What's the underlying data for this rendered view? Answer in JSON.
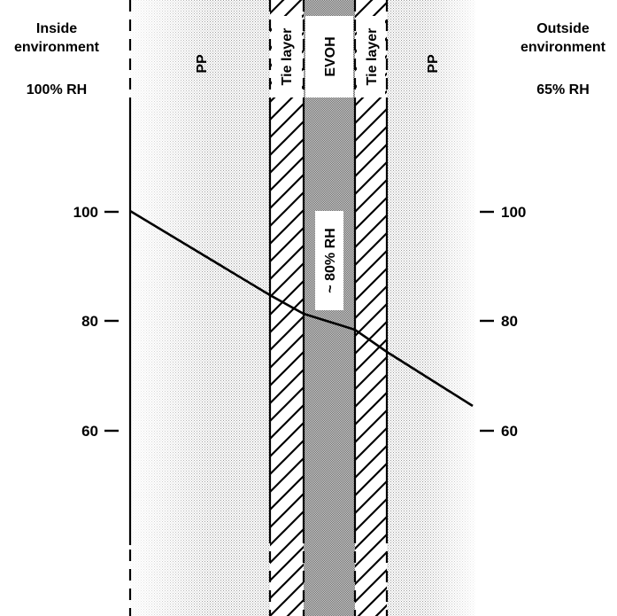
{
  "inside": {
    "title_line1": "Inside",
    "title_line2": "environment",
    "rh": "100% RH"
  },
  "outside": {
    "title_line1": "Outside",
    "title_line2": "environment",
    "rh": "65% RH"
  },
  "layers": {
    "pp_left": "PP",
    "tie_left": "Tie layer",
    "evoh": "EVOH",
    "evoh_note": "~ 80% RH",
    "tie_right": "Tie layer",
    "pp_right": "PP"
  },
  "left_ticks": [
    "100",
    "80",
    "60"
  ],
  "right_ticks": [
    "100",
    "80",
    "60"
  ],
  "humidity_profile": [
    {
      "position": "inside surface",
      "rh": 100
    },
    {
      "position": "PP / tie layer interface",
      "rh": 84
    },
    {
      "position": "tie layer / EVOH interface",
      "rh": 81
    },
    {
      "position": "EVOH / tie layer interface",
      "rh": 78
    },
    {
      "position": "tie layer / PP interface",
      "rh": 74
    },
    {
      "position": "outside surface",
      "rh": 65
    }
  ],
  "colors": {
    "line": "#000000",
    "stipple": "#bdbdbd",
    "evoh_fill": "#b5b5b5"
  }
}
